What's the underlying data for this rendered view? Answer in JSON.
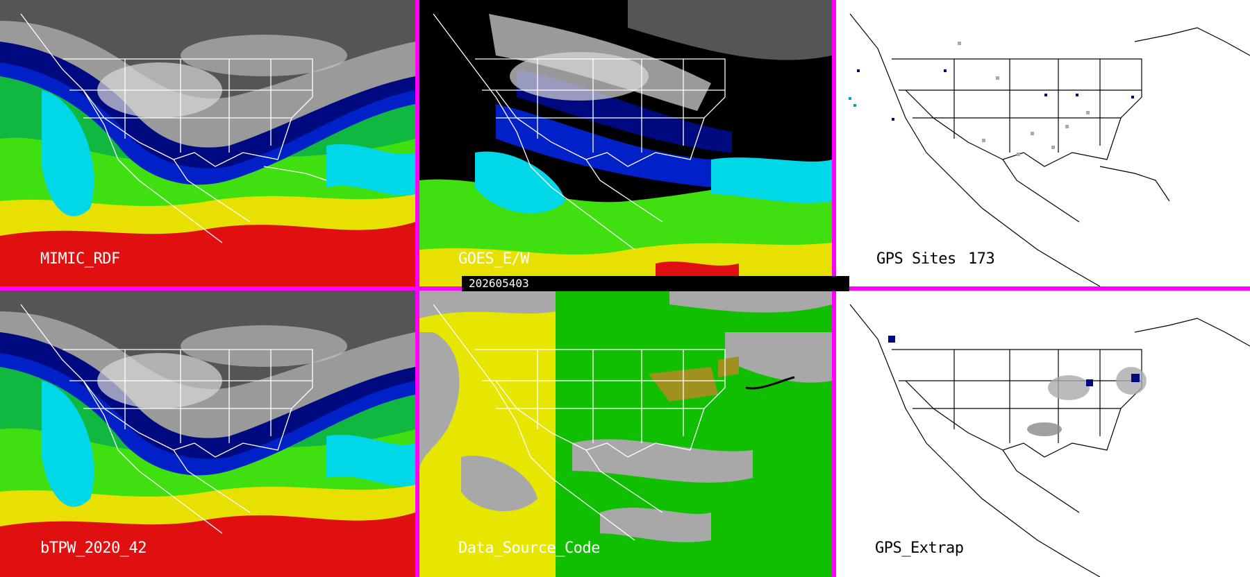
{
  "panels": [
    {
      "id": "mimic-rdf",
      "label": "MIMIC_RDF",
      "type": "water-vapor"
    },
    {
      "id": "goes-ew",
      "label": "GOES_E/W",
      "type": "water-vapor-masked"
    },
    {
      "id": "gps-sites",
      "label": "GPS Sites",
      "count": "173",
      "type": "site-map"
    },
    {
      "id": "btpw",
      "label": "bTPW_2020_42",
      "type": "water-vapor"
    },
    {
      "id": "data-source-code",
      "label": "Data_Source_Code",
      "type": "source-code"
    },
    {
      "id": "gps-extrap",
      "label": "GPS_Extrap",
      "type": "site-map-extrap"
    }
  ],
  "timestamp": "202605403",
  "colors": {
    "separator": "#ff00ff",
    "tpw_scale": [
      "#1a1a1a",
      "#555555",
      "#9a9a9a",
      "#d8d8d8",
      "#000a80",
      "#0020c8",
      "#00d8e8",
      "#10b840",
      "#40e010",
      "#e8e000",
      "#e01010"
    ],
    "source_yellow": "#e6e600",
    "source_green": "#10c000",
    "source_gray": "#a8a8a8",
    "source_olive": "#a09020"
  }
}
